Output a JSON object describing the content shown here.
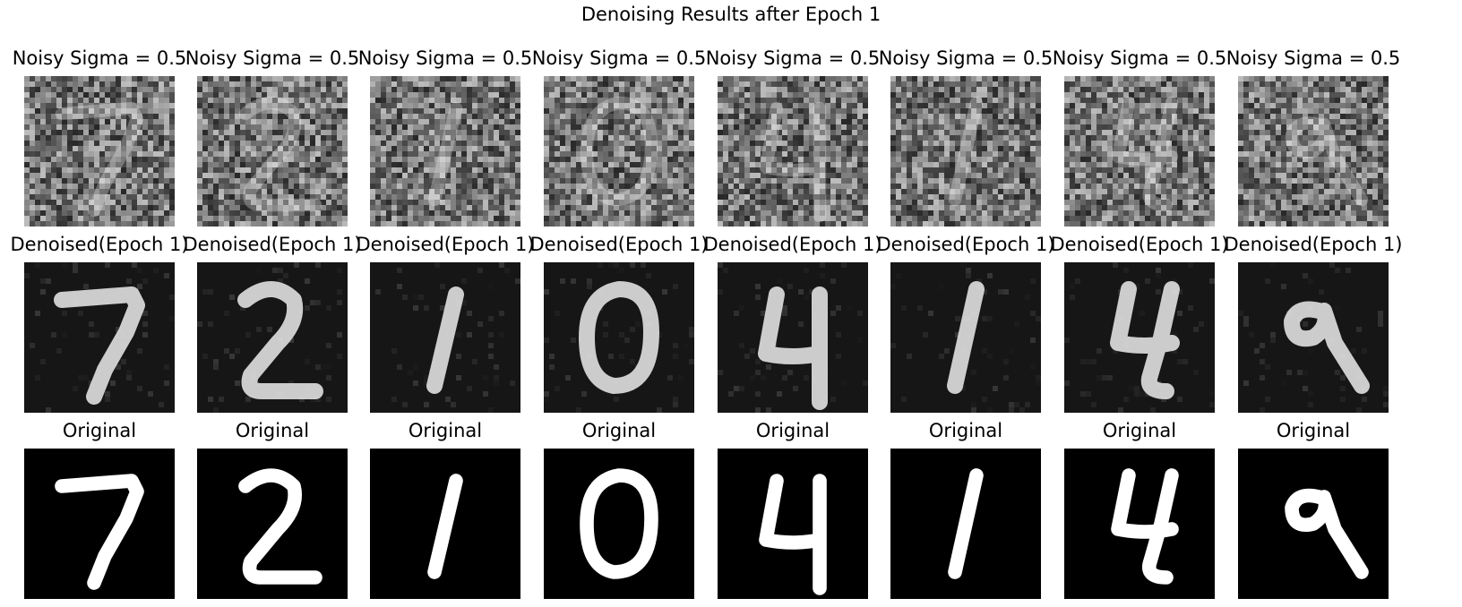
{
  "figure": {
    "title": "Denoising Results after Epoch 1"
  },
  "rows": [
    {
      "kind": "noisy",
      "labels": [
        "Noisy Sigma = 0.5",
        "Noisy Sigma = 0.5",
        "Noisy Sigma = 0.5",
        "Noisy Sigma = 0.5",
        "Noisy Sigma = 0.5",
        "Noisy Sigma = 0.5",
        "Noisy Sigma = 0.5",
        "Noisy Sigma = 0.5"
      ]
    },
    {
      "kind": "denoised",
      "labels": [
        "Denoised(Epoch 1)",
        "Denoised(Epoch 1)",
        "Denoised(Epoch 1)",
        "Denoised(Epoch 1)",
        "Denoised(Epoch 1)",
        "Denoised(Epoch 1)",
        "Denoised(Epoch 1)",
        "Denoised(Epoch 1)"
      ]
    },
    {
      "kind": "original",
      "labels": [
        "Original",
        "Original",
        "Original",
        "Original",
        "Original",
        "Original",
        "Original",
        "Original"
      ]
    }
  ],
  "digits": [
    "7",
    "2",
    "1",
    "0",
    "4",
    "1",
    "4",
    "9"
  ],
  "colors": {
    "background": "#ffffff",
    "image_bg": "#000000",
    "stroke": "#ffffff"
  }
}
